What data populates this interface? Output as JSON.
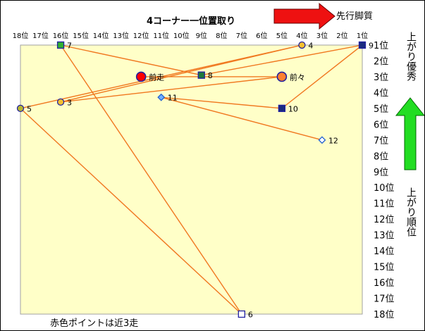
{
  "chart_data": {
    "type": "scatter",
    "title": "4コーナー一位置取り",
    "x_axis": {
      "label": "4コーナー一位置取り",
      "reversed": true,
      "range": [
        1,
        18
      ],
      "ticks": [
        "18位",
        "17位",
        "16位",
        "15位",
        "14位",
        "13位",
        "12位",
        "11位",
        "10位",
        "9位",
        "8位",
        "7位",
        "6位",
        "5位",
        "4位",
        "3位",
        "2位",
        "1位"
      ]
    },
    "y_axis": {
      "label_top": "上がり優秀",
      "label_bottom": "上がり順位",
      "reversed": true,
      "range": [
        1,
        18
      ],
      "ticks": [
        "1位",
        "2位",
        "3位",
        "4位",
        "5位",
        "6位",
        "7位",
        "8位",
        "9位",
        "10位",
        "11位",
        "12位",
        "13位",
        "14位",
        "15位",
        "16位",
        "17位",
        "18位"
      ]
    },
    "arrow_right_label": "先行脚質",
    "footnote": "赤色ポイントは近3走",
    "grid": false,
    "points": [
      {
        "label": "前走",
        "x": 12,
        "y": 3,
        "marker": "circle-large",
        "fill": "#ff0000",
        "stroke": "#2020a0"
      },
      {
        "label": "前々",
        "x": 5,
        "y": 3,
        "marker": "circle-large",
        "fill": "#ff8030",
        "stroke": "#2020a0"
      },
      {
        "label": "3",
        "x": 16,
        "y": 4.6,
        "marker": "circle",
        "fill": "#f5c030",
        "stroke": "#2020a0"
      },
      {
        "label": "4",
        "x": 4,
        "y": 1,
        "marker": "circle",
        "fill": "#f5c030",
        "stroke": "#2020a0"
      },
      {
        "label": "5",
        "x": 18,
        "y": 5,
        "marker": "circle",
        "fill": "#b8b830",
        "stroke": "#2020a0"
      },
      {
        "label": "6",
        "x": 7,
        "y": 18,
        "marker": "square-open",
        "fill": "#ffffff",
        "stroke": "#2020a0"
      },
      {
        "label": "7",
        "x": 16,
        "y": 1,
        "marker": "square",
        "fill": "#30b030",
        "stroke": "#2020a0"
      },
      {
        "label": "8",
        "x": 9,
        "y": 2.9,
        "marker": "square",
        "fill": "#1e7a3a",
        "stroke": "#2020a0"
      },
      {
        "label": "9",
        "x": 1,
        "y": 1,
        "marker": "square",
        "fill": "#1a2b80",
        "stroke": "#2020a0"
      },
      {
        "label": "10",
        "x": 5,
        "y": 5,
        "marker": "square",
        "fill": "#1a2b80",
        "stroke": "#2020a0"
      },
      {
        "label": "11",
        "x": 11,
        "y": 4.3,
        "marker": "diamond",
        "fill": "#70b0ff",
        "stroke": "#2060d0"
      },
      {
        "label": "12",
        "x": 3,
        "y": 7,
        "marker": "diamond",
        "fill": "#ffffff",
        "stroke": "#2060d0"
      }
    ],
    "line_color": "#f07820",
    "plot_background": "#ffffc8"
  },
  "colors": {
    "arrow_right": "#ee1111",
    "arrow_up": "#22dd22"
  }
}
